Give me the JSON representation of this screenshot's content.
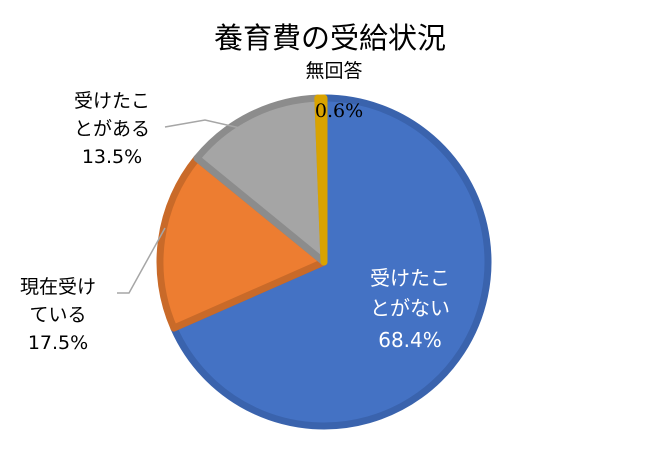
{
  "chart_data": {
    "type": "pie",
    "title": "養育費の受給状況",
    "slices": [
      {
        "label": "受けたことがない",
        "value": 68.4,
        "value_label": "68.4%",
        "label_lines": [
          "受けたこ",
          "とがない"
        ],
        "color": "#4472c4",
        "border": "#3a63ad"
      },
      {
        "label": "現在受けている",
        "value": 17.5,
        "value_label": "17.5%",
        "label_lines": [
          "現在受け",
          "ている"
        ],
        "color": "#ed7d31",
        "border": "#c96a29"
      },
      {
        "label": "受けたことがある",
        "value": 13.5,
        "value_label": "13.5%",
        "label_lines": [
          "受けたこ",
          "とがある"
        ],
        "color": "#a5a5a5",
        "border": "#8c8c8c"
      },
      {
        "label": "無回答",
        "value": 0.6,
        "value_label": "0.6%",
        "label_lines": [
          "無回答"
        ],
        "color": "#ffc000",
        "border": "#d9a300"
      }
    ],
    "start_angle_deg": 0,
    "direction": "clockwise",
    "legend": "none"
  }
}
